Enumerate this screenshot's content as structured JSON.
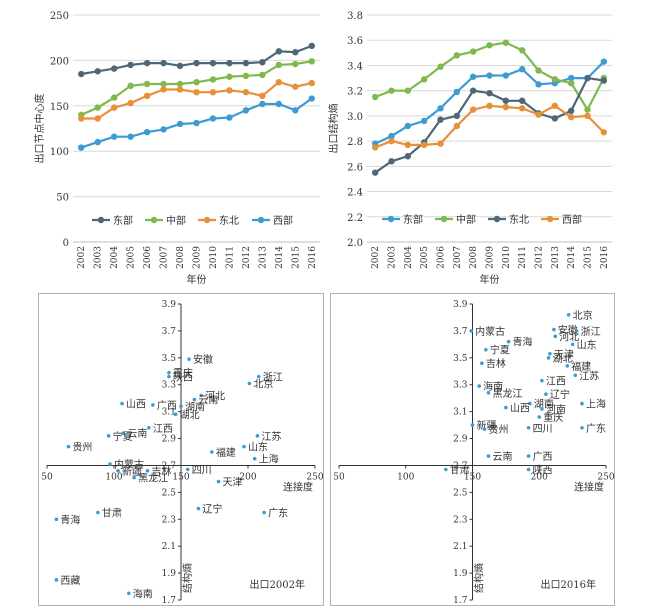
{
  "chart_data": [
    {
      "type": "line",
      "ylabel": "出口节点中心度",
      "xlabel": "年份",
      "ylim": [
        0,
        250
      ],
      "yticks": [
        0,
        50,
        100,
        150,
        200,
        250
      ],
      "x": [
        "2002",
        "2003",
        "2004",
        "2005",
        "2006",
        "2007",
        "2008",
        "2009",
        "2010",
        "2011",
        "2012",
        "2013",
        "2014",
        "2015",
        "2016"
      ],
      "grid": true,
      "legend_position": "bottom-center",
      "series": [
        {
          "name": "东部",
          "color": "#4d6678",
          "values": [
            185,
            188,
            191,
            195,
            197,
            197,
            194,
            197,
            197,
            197,
            197,
            198,
            210,
            209,
            216
          ]
        },
        {
          "name": "中部",
          "color": "#7fb94e",
          "values": [
            140,
            148,
            159,
            172,
            174,
            174,
            174,
            176,
            179,
            182,
            183,
            184,
            195,
            196,
            199
          ]
        },
        {
          "name": "东北",
          "color": "#e69138",
          "values": [
            136,
            136,
            148,
            153,
            161,
            168,
            168,
            165,
            165,
            167,
            165,
            161,
            176,
            171,
            175
          ]
        },
        {
          "name": "西部",
          "color": "#3d9bd1",
          "values": [
            104,
            110,
            116,
            116,
            121,
            124,
            130,
            131,
            136,
            137,
            145,
            152,
            152,
            145,
            158
          ]
        }
      ]
    },
    {
      "type": "line",
      "ylabel": "出口结构熵",
      "xlabel": "年份",
      "ylim": [
        2.0,
        3.8
      ],
      "yticks": [
        "2.0",
        "2.2",
        "2.4",
        "2.6",
        "2.8",
        "3.0",
        "3.2",
        "3.4",
        "3.6",
        "3.8"
      ],
      "x": [
        "2002",
        "2003",
        "2004",
        "2005",
        "2006",
        "2007",
        "2008",
        "2009",
        "2010",
        "2011",
        "2012",
        "2013",
        "2014",
        "2015",
        "2016"
      ],
      "grid": true,
      "legend_position": "bottom-center",
      "series": [
        {
          "name": "东部",
          "color": "#3d9bd1",
          "values": [
            2.78,
            2.84,
            2.92,
            2.96,
            3.06,
            3.19,
            3.31,
            3.32,
            3.32,
            3.37,
            3.25,
            3.26,
            3.3,
            3.3,
            3.43
          ]
        },
        {
          "name": "中部",
          "color": "#7fb94e",
          "values": [
            3.15,
            3.2,
            3.2,
            3.29,
            3.39,
            3.48,
            3.51,
            3.56,
            3.58,
            3.52,
            3.36,
            3.29,
            3.26,
            3.05,
            3.3
          ]
        },
        {
          "name": "东北",
          "color": "#4d6678",
          "values": [
            2.55,
            2.64,
            2.68,
            2.79,
            2.97,
            3.0,
            3.2,
            3.18,
            3.12,
            3.12,
            3.02,
            2.98,
            3.04,
            3.3,
            3.28
          ]
        },
        {
          "name": "西部",
          "color": "#e69138",
          "values": [
            2.75,
            2.8,
            2.77,
            2.77,
            2.78,
            2.92,
            3.05,
            3.08,
            3.07,
            3.06,
            3.01,
            3.08,
            2.99,
            3.0,
            2.87
          ]
        }
      ]
    },
    {
      "type": "scatter",
      "title": "出口2002年",
      "xlabel": "连接度",
      "ylabel": "结构熵",
      "xlim": [
        50,
        250
      ],
      "xticks": [
        "50",
        "100",
        "150",
        "200",
        "250"
      ],
      "ylim": [
        1.7,
        3.9
      ],
      "yticks": [
        "1.7",
        "1.9",
        "2.1",
        "2.3",
        "2.5",
        "2.7",
        "2.9",
        "3.1",
        "3.3",
        "3.5",
        "3.7",
        "3.9"
      ],
      "axis_origin": {
        "x": 150,
        "y": 2.7
      },
      "point_color": "#3d9bd1",
      "points": [
        {
          "label": "安徽",
          "x": 156,
          "y": 3.49
        },
        {
          "label": "重庆",
          "x": 141,
          "y": 3.39
        },
        {
          "label": "陕西",
          "x": 141,
          "y": 3.36
        },
        {
          "label": "浙江",
          "x": 208,
          "y": 3.36
        },
        {
          "label": "北京",
          "x": 201,
          "y": 3.31
        },
        {
          "label": "河北",
          "x": 165,
          "y": 3.22
        },
        {
          "label": "云南",
          "x": 160,
          "y": 3.19
        },
        {
          "label": "山西",
          "x": 106,
          "y": 3.16
        },
        {
          "label": "广西",
          "x": 129,
          "y": 3.15
        },
        {
          "label": "湖南",
          "x": 150,
          "y": 3.14
        },
        {
          "label": "湖北",
          "x": 146,
          "y": 3.08
        },
        {
          "label": "江西",
          "x": 126,
          "y": 2.98
        },
        {
          "label": "云南",
          "x": 107,
          "y": 2.94
        },
        {
          "label": "宁夏",
          "x": 96,
          "y": 2.92
        },
        {
          "label": "江苏",
          "x": 207,
          "y": 2.92
        },
        {
          "label": "贵州",
          "x": 66,
          "y": 2.84
        },
        {
          "label": "山东",
          "x": 197,
          "y": 2.84
        },
        {
          "label": "福建",
          "x": 173,
          "y": 2.8
        },
        {
          "label": "上海",
          "x": 205,
          "y": 2.75
        },
        {
          "label": "内蒙古",
          "x": 97,
          "y": 2.71
        },
        {
          "label": "新疆",
          "x": 103,
          "y": 2.66
        },
        {
          "label": "吉林",
          "x": 125,
          "y": 2.66
        },
        {
          "label": "四川",
          "x": 155,
          "y": 2.67
        },
        {
          "label": "黑龙江",
          "x": 115,
          "y": 2.61
        },
        {
          "label": "天津",
          "x": 178,
          "y": 2.58
        },
        {
          "label": "辽宁",
          "x": 163,
          "y": 2.38
        },
        {
          "label": "广东",
          "x": 212,
          "y": 2.35
        },
        {
          "label": "甘肃",
          "x": 88,
          "y": 2.35
        },
        {
          "label": "青海",
          "x": 57,
          "y": 2.3
        },
        {
          "label": "西藏",
          "x": 57,
          "y": 1.85
        },
        {
          "label": "海南",
          "x": 111,
          "y": 1.75
        }
      ]
    },
    {
      "type": "scatter",
      "title": "出口2016年",
      "xlabel": "连接度",
      "ylabel": "结构熵",
      "xlim": [
        50,
        250
      ],
      "xticks": [
        "50",
        "100",
        "150",
        "200",
        "250"
      ],
      "ylim": [
        1.7,
        3.9
      ],
      "yticks": [
        "1.7",
        "1.9",
        "2.1",
        "2.3",
        "2.5",
        "2.7",
        "2.9",
        "3.1",
        "3.3",
        "3.5",
        "3.7",
        "3.9"
      ],
      "axis_origin": {
        "x": 150,
        "y": 2.7
      },
      "point_color": "#3d9bd1",
      "points": [
        {
          "label": "北京",
          "x": 222,
          "y": 3.82
        },
        {
          "label": "内蒙古",
          "x": 149,
          "y": 3.7
        },
        {
          "label": "安徽",
          "x": 211,
          "y": 3.71
        },
        {
          "label": "浙江",
          "x": 228,
          "y": 3.7
        },
        {
          "label": "河北",
          "x": 212,
          "y": 3.66
        },
        {
          "label": "青海",
          "x": 177,
          "y": 3.62
        },
        {
          "label": "宁夏",
          "x": 160,
          "y": 3.56
        },
        {
          "label": "山东",
          "x": 225,
          "y": 3.6
        },
        {
          "label": "天津",
          "x": 208,
          "y": 3.53
        },
        {
          "label": "湖北",
          "x": 207,
          "y": 3.5
        },
        {
          "label": "吉林",
          "x": 157,
          "y": 3.46
        },
        {
          "label": "福建",
          "x": 221,
          "y": 3.44
        },
        {
          "label": "江苏",
          "x": 227,
          "y": 3.37
        },
        {
          "label": "江西",
          "x": 202,
          "y": 3.33
        },
        {
          "label": "海南",
          "x": 155,
          "y": 3.29
        },
        {
          "label": "黑龙江",
          "x": 162,
          "y": 3.24
        },
        {
          "label": "辽宁",
          "x": 205,
          "y": 3.23
        },
        {
          "label": "湖南",
          "x": 193,
          "y": 3.16
        },
        {
          "label": "山西",
          "x": 175,
          "y": 3.13
        },
        {
          "label": "上海",
          "x": 232,
          "y": 3.16
        },
        {
          "label": "河南",
          "x": 202,
          "y": 3.12
        },
        {
          "label": "重庆",
          "x": 200,
          "y": 3.06
        },
        {
          "label": "新疆",
          "x": 150,
          "y": 3.0
        },
        {
          "label": "贵州",
          "x": 159,
          "y": 2.97
        },
        {
          "label": "四川",
          "x": 192,
          "y": 2.98
        },
        {
          "label": "广东",
          "x": 232,
          "y": 2.98
        },
        {
          "label": "云南",
          "x": 162,
          "y": 2.77
        },
        {
          "label": "广西",
          "x": 192,
          "y": 2.77
        },
        {
          "label": "陕西",
          "x": 192,
          "y": 2.67
        },
        {
          "label": "甘肃",
          "x": 130,
          "y": 2.67
        }
      ]
    }
  ]
}
